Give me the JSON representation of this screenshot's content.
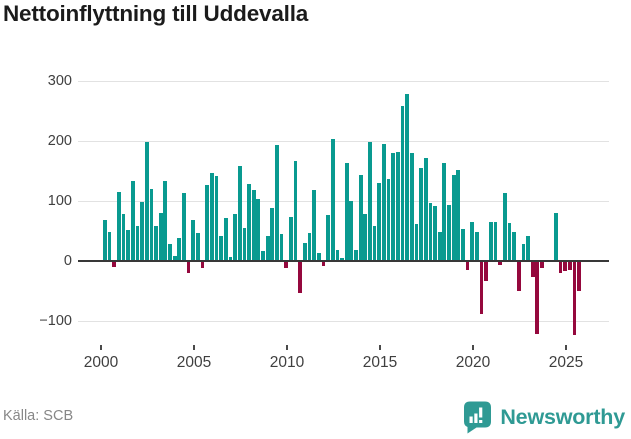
{
  "title": "Nettoinflyttning till Uddevalla",
  "footer": {
    "source": "Källa: SCB",
    "brand": "Newsworthy",
    "logo_icon": "newsworthy-speech-bubble-bar-chart"
  },
  "colors": {
    "bar_positive": "#099a90",
    "bar_negative": "#95083d",
    "brand_teal": "#2f9a94",
    "axis_text": "#3f3f3f",
    "gridline": "#e2e2e2",
    "zero_line": "#383838"
  },
  "chart_data": {
    "type": "bar",
    "title": "Nettoinflyttning till Uddevalla",
    "xlabel": "",
    "ylabel": "",
    "frequency": "quarterly",
    "x_start": "2000Q1",
    "x_end": "2025Q3",
    "ylim": [
      -145,
      310
    ],
    "grid": "horizontal",
    "y_ticks": [
      {
        "label": "300",
        "value": 300
      },
      {
        "label": "200",
        "value": 200
      },
      {
        "label": "100",
        "value": 100
      },
      {
        "label": "0",
        "value": 0
      },
      {
        "label": "−100",
        "value": -100
      }
    ],
    "x_ticks": [
      "2000",
      "2005",
      "2010",
      "2015",
      "2020",
      "2025"
    ],
    "values_by_year": {
      "2000": [
        67,
        46,
        -8,
        113
      ],
      "2001": [
        76,
        49,
        132,
        57
      ],
      "2002": [
        96,
        197,
        118,
        56
      ],
      "2003": [
        78,
        132,
        27,
        6
      ],
      "2004": [
        37,
        111,
        -18,
        67
      ],
      "2005": [
        44,
        -9,
        125,
        145
      ],
      "2006": [
        140,
        40,
        70,
        4
      ],
      "2007": [
        77,
        157,
        53,
        127
      ],
      "2008": [
        116,
        102,
        15,
        40
      ],
      "2009": [
        86,
        192,
        43,
        -10
      ],
      "2010": [
        71,
        164,
        -52,
        28
      ],
      "2011": [
        45,
        117,
        11,
        -7
      ],
      "2012": [
        74,
        202,
        17,
        3
      ],
      "2013": [
        161,
        98,
        17,
        142
      ],
      "2014": [
        77,
        197,
        57,
        128
      ],
      "2015": [
        193,
        135,
        178,
        179
      ],
      "2016": [
        257,
        277,
        178,
        60
      ],
      "2017": [
        153,
        169,
        94,
        89
      ],
      "2018": [
        46,
        161,
        91,
        142
      ],
      "2019": [
        150,
        51,
        -13,
        63
      ],
      "2020": [
        46,
        -87,
        -32,
        63
      ],
      "2021": [
        63,
        -5,
        111,
        61
      ],
      "2022": [
        47,
        -48,
        27,
        39
      ],
      "2023": [
        -24,
        -120,
        -9,
        0
      ],
      "2024": [
        0,
        78,
        -18,
        -15
      ],
      "2025": [
        -13,
        -122,
        -48
      ]
    }
  }
}
